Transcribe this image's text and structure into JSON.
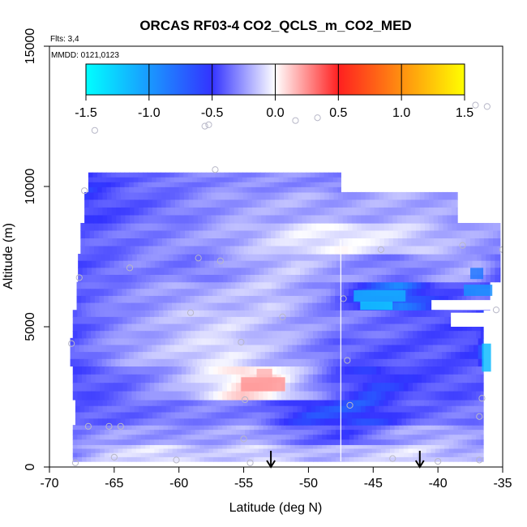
{
  "chart_data": {
    "type": "heatmap",
    "title": "ORCAS RF03-4 CO2_QCLS_m_CO2_MED",
    "flights_label": "Flts: 3,4",
    "dates_label": "MMDD: 0121,0123",
    "xlabel": "Latitude (deg N)",
    "ylabel": "Altitude (m)",
    "xlim": [
      -70,
      -35
    ],
    "ylim": [
      0,
      15000
    ],
    "x_ticks": [
      -70,
      -65,
      -60,
      -55,
      -50,
      -45,
      -40,
      -35
    ],
    "x_tick_labels": [
      "-70",
      "-65",
      "-60",
      "-55",
      "-50",
      "-45",
      "-40",
      "-35"
    ],
    "y_ticks": [
      0,
      5000,
      10000,
      15000
    ],
    "y_tick_labels": [
      "0",
      "5000",
      "10000",
      "15000"
    ],
    "colorbar": {
      "range": [
        -1.5,
        1.5
      ],
      "ticks": [
        -1.5,
        -1.0,
        -0.5,
        0.0,
        0.5,
        1.0,
        1.5
      ],
      "tick_labels": [
        "-1.5",
        "-1.0",
        "-0.5",
        "0.0",
        "0.5",
        "1.0",
        "1.5"
      ],
      "colors": [
        "#00ffff",
        "#3333ff",
        "#ffffff",
        "#ff2020",
        "#ffff00"
      ]
    },
    "rows": [
      {
        "alt0": 200,
        "alt1": 800,
        "x0": -68.2,
        "x1": -36.5,
        "segs": [
          [
            -68.2,
            -0.45
          ],
          [
            -65.5,
            -0.2
          ],
          [
            -62,
            -0.1
          ],
          [
            -58,
            -0.25
          ],
          [
            -54,
            -0.15
          ],
          [
            -50,
            -0.3
          ],
          [
            -46,
            -0.25
          ],
          [
            -42,
            -0.1
          ],
          [
            -39,
            -0.3
          ],
          [
            -36.5,
            -0.3
          ]
        ]
      },
      {
        "alt0": 800,
        "alt1": 1500,
        "x0": -68.2,
        "x1": -36.5,
        "segs": [
          [
            -68.2,
            -0.5
          ],
          [
            -65,
            -0.35
          ],
          [
            -60,
            -0.4
          ],
          [
            -55,
            -0.3
          ],
          [
            -50,
            -0.55
          ],
          [
            -47,
            -0.7
          ],
          [
            -43,
            -0.35
          ],
          [
            -39,
            -0.3
          ],
          [
            -36.5,
            -0.4
          ]
        ]
      },
      {
        "alt0": 1500,
        "alt1": 2400,
        "x0": -68.0,
        "x1": -36.5,
        "segs": [
          [
            -68,
            -0.6
          ],
          [
            -63,
            -0.55
          ],
          [
            -58,
            -0.45
          ],
          [
            -54,
            -0.5
          ],
          [
            -50,
            -0.8
          ],
          [
            -46,
            -0.85
          ],
          [
            -42,
            -0.6
          ],
          [
            -38,
            -0.5
          ],
          [
            -36.5,
            -0.5
          ]
        ]
      },
      {
        "alt0": 2400,
        "alt1": 3600,
        "x0": -68.2,
        "x1": -36.5,
        "segs": [
          [
            -68.2,
            -0.65
          ],
          [
            -64,
            -0.55
          ],
          [
            -60,
            -0.3
          ],
          [
            -57,
            -0.05
          ],
          [
            -55,
            0.15
          ],
          [
            -53,
            0.1
          ],
          [
            -51,
            -0.2
          ],
          [
            -48,
            -0.6
          ],
          [
            -45,
            -0.8
          ],
          [
            -41,
            -0.65
          ],
          [
            -37,
            -0.6
          ],
          [
            -36.5,
            -0.6
          ]
        ]
      },
      {
        "alt0": 3600,
        "alt1": 4600,
        "x0": -68.4,
        "x1": -36.5,
        "segs": [
          [
            -68.4,
            -0.6
          ],
          [
            -64,
            -0.35
          ],
          [
            -60,
            -0.2
          ],
          [
            -56,
            -0.1
          ],
          [
            -52,
            -0.3
          ],
          [
            -48,
            -0.55
          ],
          [
            -44,
            -0.65
          ],
          [
            -40,
            -0.6
          ],
          [
            -37,
            -0.7
          ],
          [
            -36.5,
            -0.9
          ]
        ]
      },
      {
        "alt0": 4600,
        "alt1": 5600,
        "x0": -68.2,
        "x1": -36.5,
        "segs": [
          [
            -68.2,
            -0.65
          ],
          [
            -64,
            -0.4
          ],
          [
            -60,
            -0.25
          ],
          [
            -56,
            -0.15
          ],
          [
            -52,
            -0.3
          ],
          [
            -48,
            -0.45
          ],
          [
            -44,
            -0.55
          ],
          [
            -40,
            -0.65
          ],
          [
            -37,
            -0.7
          ],
          [
            -36.5,
            -0.8
          ]
        ]
      },
      {
        "alt0": 5600,
        "alt1": 6600,
        "x0": -67.9,
        "x1": -36.0,
        "segs": [
          [
            -67.9,
            -0.6
          ],
          [
            -63,
            -0.4
          ],
          [
            -58,
            -0.3
          ],
          [
            -53,
            -0.2
          ],
          [
            -48.5,
            -0.45
          ],
          [
            -46,
            -0.8
          ],
          [
            -43,
            -1.0
          ],
          [
            -40,
            -0.7
          ],
          [
            -37,
            -0.55
          ],
          [
            -36,
            -0.6
          ]
        ]
      },
      {
        "alt0": 6600,
        "alt1": 7600,
        "x0": -67.8,
        "x1": -35.2,
        "segs": [
          [
            -67.8,
            -0.65
          ],
          [
            -63,
            -0.45
          ],
          [
            -59,
            -0.5
          ],
          [
            -55,
            -0.35
          ],
          [
            -51,
            -0.2
          ],
          [
            -47,
            -0.4
          ],
          [
            -43,
            -0.5
          ],
          [
            -39,
            -0.35
          ],
          [
            -37,
            -0.3
          ],
          [
            -35.2,
            -0.6
          ]
        ]
      },
      {
        "alt0": 7600,
        "alt1": 8700,
        "x0": -67.6,
        "x1": -35.2,
        "segs": [
          [
            -67.6,
            -0.6
          ],
          [
            -63,
            -0.5
          ],
          [
            -59,
            -0.4
          ],
          [
            -55,
            -0.3
          ],
          [
            -51,
            -0.1
          ],
          [
            -47,
            -0.05
          ],
          [
            -43,
            -0.15
          ],
          [
            -39,
            -0.3
          ],
          [
            -35.2,
            -0.4
          ]
        ]
      },
      {
        "alt0": 8700,
        "alt1": 9800,
        "x0": -67.3,
        "x1": -38.5,
        "segs": [
          [
            -67.3,
            -0.7
          ],
          [
            -63,
            -0.6
          ],
          [
            -59,
            -0.45
          ],
          [
            -55,
            -0.35
          ],
          [
            -51,
            -0.3
          ],
          [
            -47,
            -0.35
          ],
          [
            -43,
            -0.3
          ],
          [
            -38.5,
            -0.35
          ]
        ]
      },
      {
        "alt0": 9800,
        "alt1": 10500,
        "x0": -67.0,
        "x1": -47.5,
        "segs": [
          [
            -67,
            -0.75
          ],
          [
            -63,
            -0.55
          ],
          [
            -60,
            -0.5
          ],
          [
            -57,
            -0.45
          ],
          [
            -53,
            -0.4
          ],
          [
            -47.5,
            -0.45
          ]
        ]
      }
    ],
    "patches": [
      {
        "x0": -46.5,
        "x1": -42.5,
        "y0": 5900,
        "y1": 6300,
        "v": -1.2
      },
      {
        "x0": -46.0,
        "x1": -43.5,
        "y0": 5600,
        "y1": 5900,
        "v": -1.3
      },
      {
        "x0": -38.0,
        "x1": -35.8,
        "y0": 6100,
        "y1": 6500,
        "v": -1.1
      },
      {
        "x0": -36.6,
        "x1": -35.9,
        "y0": 3400,
        "y1": 4400,
        "v": -1.25
      },
      {
        "x0": -55.2,
        "x1": -51.8,
        "y0": 2700,
        "y1": 3200,
        "v": 0.35
      },
      {
        "x0": -54.0,
        "x1": -52.8,
        "y0": 3200,
        "y1": 3500,
        "v": 0.25
      },
      {
        "x0": -37.5,
        "x1": -36.5,
        "y0": 6700,
        "y1": 7100,
        "v": -1.0
      }
    ],
    "gaps": [
      {
        "x0": -40.5,
        "x1": -35.2,
        "y0": 5600,
        "y1": 5950
      },
      {
        "x0": -39.0,
        "x1": -35.4,
        "y0": 5000,
        "y1": 5500
      }
    ],
    "flight_points": [
      [
        -66.5,
        12000
      ],
      [
        -58.0,
        12150
      ],
      [
        -57.7,
        12200
      ],
      [
        -51.0,
        12350
      ],
      [
        -49.3,
        12450
      ],
      [
        -37.1,
        12900
      ],
      [
        -36.2,
        12850
      ],
      [
        -57.2,
        10600
      ],
      [
        -67.3,
        9850
      ],
      [
        -58.5,
        7450
      ],
      [
        -56.8,
        7350
      ],
      [
        -63.8,
        7100
      ],
      [
        -67.7,
        6750
      ],
      [
        -59.1,
        5500
      ],
      [
        -55.2,
        4450
      ],
      [
        -52.0,
        5350
      ],
      [
        -47.3,
        6000
      ],
      [
        -47.0,
        3800
      ],
      [
        -46.8,
        2200
      ],
      [
        -54.9,
        2400
      ],
      [
        -44.4,
        7750
      ],
      [
        -38.1,
        7900
      ],
      [
        -35.0,
        7750
      ],
      [
        -35.5,
        5600
      ],
      [
        -36.6,
        2450
      ],
      [
        -36.8,
        1800
      ],
      [
        -67.0,
        1450
      ],
      [
        -65.4,
        1450
      ],
      [
        -64.5,
        1450
      ],
      [
        -68.3,
        4400
      ],
      [
        -65.0,
        350
      ],
      [
        -60.2,
        250
      ],
      [
        -55.0,
        1000
      ],
      [
        -43.5,
        300
      ],
      [
        -40.0,
        200
      ],
      [
        -68.0,
        150
      ],
      [
        -54.5,
        150
      ],
      [
        -36.8,
        250
      ]
    ],
    "profile_line_x": -47.5,
    "arrows_x": [
      -52.9,
      -41.4
    ]
  }
}
